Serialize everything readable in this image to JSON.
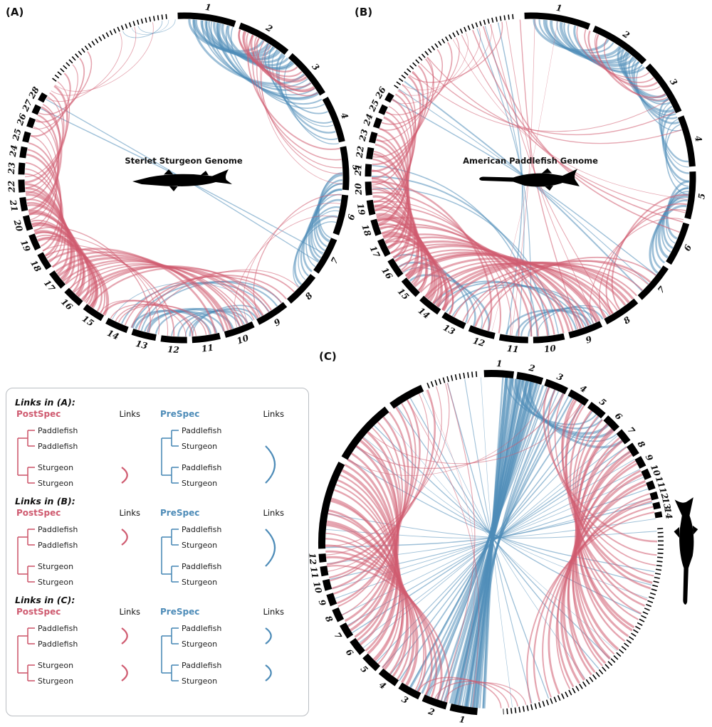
{
  "colors": {
    "post": "#cf5b70",
    "pre": "#4e8cb8",
    "ink": "#000000"
  },
  "panel_labels": {
    "a": "(A)",
    "b": "(B)",
    "c": "(C)"
  },
  "chart_data": [
    {
      "type": "circos",
      "panel": "(A)",
      "title": "Sterlet Sturgeon Genome",
      "chromosomes": [
        "1",
        "2",
        "3",
        "4",
        "5",
        "6",
        "7",
        "8",
        "9",
        "10",
        "11",
        "12",
        "13",
        "14",
        "15",
        "16",
        "17",
        "18",
        "19",
        "20",
        "21",
        "22",
        "23",
        "24",
        "25",
        "26",
        "27",
        "28"
      ],
      "dotted_unplaced_region": true,
      "link_types": {
        "red": "PostSpec",
        "blue": "PreSpec"
      },
      "links_pre": [
        [
          2,
          16,
          30,
          44,
          10,
          3
        ],
        [
          4,
          18,
          50,
          62,
          8,
          2.5
        ],
        [
          32,
          42,
          66,
          78,
          6,
          2
        ],
        [
          88,
          96,
          112,
          124,
          8,
          2.5
        ],
        [
          98,
          106,
          126,
          134,
          5,
          2
        ],
        [
          150,
          158,
          176,
          184,
          5,
          2
        ],
        [
          160,
          170,
          190,
          200,
          5,
          2.5
        ],
        [
          142,
          150,
          196,
          206,
          4,
          1.5
        ],
        [
          338,
          344,
          352,
          357,
          3,
          1
        ],
        [
          296,
          300,
          118,
          122,
          2,
          1.5
        ]
      ],
      "links_post": [
        [
          20,
          28,
          46,
          58,
          8,
          2.5
        ],
        [
          26,
          34,
          80,
          92,
          5,
          1.5
        ],
        [
          210,
          220,
          246,
          256,
          8,
          3
        ],
        [
          222,
          232,
          258,
          268,
          8,
          3
        ],
        [
          236,
          244,
          272,
          282,
          6,
          2.5
        ],
        [
          250,
          258,
          286,
          296,
          5,
          2
        ],
        [
          262,
          270,
          298,
          308,
          5,
          2
        ],
        [
          286,
          294,
          312,
          322,
          4,
          1.5
        ],
        [
          146,
          156,
          216,
          226,
          6,
          2.5
        ],
        [
          158,
          168,
          228,
          238,
          6,
          2.5
        ],
        [
          170,
          180,
          204,
          212,
          5,
          2
        ],
        [
          184,
          192,
          240,
          250,
          4,
          2
        ],
        [
          134,
          142,
          194,
          202,
          4,
          1.5
        ],
        [
          300,
          306,
          336,
          348,
          3,
          1
        ],
        [
          96,
          104,
          152,
          160,
          3,
          1.2
        ]
      ]
    },
    {
      "type": "circos",
      "panel": "(B)",
      "title": "American Paddlefish Genome",
      "chromosomes": [
        "1",
        "2",
        "3",
        "4",
        "5",
        "6",
        "7",
        "8",
        "9",
        "10",
        "11",
        "12",
        "13",
        "14",
        "15",
        "16",
        "17",
        "18",
        "19",
        "20",
        "21",
        "22",
        "23",
        "24",
        "25",
        "26"
      ],
      "dotted_unplaced_region": true,
      "link_types": {
        "red": "PostSpec",
        "blue": "PreSpec"
      },
      "links_pre": [
        [
          2,
          16,
          30,
          46,
          10,
          3
        ],
        [
          34,
          44,
          58,
          72,
          8,
          2.5
        ],
        [
          60,
          70,
          84,
          96,
          6,
          2
        ],
        [
          92,
          100,
          112,
          126,
          8,
          2.5
        ],
        [
          150,
          160,
          178,
          188,
          5,
          2
        ],
        [
          196,
          204,
          230,
          240,
          4,
          2
        ],
        [
          156,
          164,
          210,
          218,
          4,
          2
        ],
        [
          170,
          178,
          266,
          274,
          3,
          1.5
        ],
        [
          128,
          136,
          300,
          308,
          3,
          1.5
        ],
        [
          180,
          188,
          340,
          348,
          3,
          1
        ]
      ],
      "links_post": [
        [
          18,
          28,
          48,
          60,
          6,
          2
        ],
        [
          210,
          222,
          246,
          258,
          10,
          3.2
        ],
        [
          224,
          234,
          260,
          272,
          8,
          3
        ],
        [
          238,
          248,
          276,
          288,
          7,
          2.5
        ],
        [
          252,
          262,
          292,
          304,
          6,
          2.2
        ],
        [
          268,
          278,
          306,
          318,
          5,
          2
        ],
        [
          284,
          294,
          320,
          332,
          4,
          1.5
        ],
        [
          300,
          310,
          336,
          350,
          4,
          1.2
        ],
        [
          140,
          152,
          214,
          226,
          7,
          2.8
        ],
        [
          154,
          166,
          230,
          242,
          7,
          2.8
        ],
        [
          168,
          180,
          244,
          254,
          5,
          2
        ],
        [
          184,
          196,
          258,
          268,
          4,
          2
        ],
        [
          128,
          138,
          198,
          208,
          5,
          2
        ],
        [
          330,
          342,
          98,
          110,
          4,
          1.2
        ],
        [
          346,
          356,
          150,
          162,
          3,
          1
        ],
        [
          312,
          320,
          60,
          72,
          3,
          1
        ],
        [
          96,
          106,
          146,
          156,
          4,
          1.5
        ],
        [
          2,
          10,
          186,
          194,
          2,
          0.8
        ]
      ]
    },
    {
      "type": "circos",
      "panel": "(C)",
      "title": "",
      "chromosomes_top_paddlefish": [
        "1",
        "2",
        "3",
        "4",
        "5",
        "6",
        "7",
        "8",
        "9",
        "10",
        "11",
        "12",
        "13",
        "14"
      ],
      "chromosomes_bottom_sturgeon": [
        "1",
        "2",
        "3",
        "4",
        "5",
        "6",
        "7",
        "8",
        "9",
        "10",
        "11",
        "12"
      ],
      "dotted_unplaced_region": true,
      "link_types": {
        "red": "PostSpec",
        "blue": "PreSpec"
      },
      "links_pre": [
        [
          4,
          16,
          182,
          196,
          14,
          4
        ],
        [
          8,
          20,
          198,
          210,
          8,
          2.5
        ],
        [
          20,
          30,
          184,
          192,
          6,
          2
        ],
        [
          6,
          14,
          40,
          52,
          6,
          2.5
        ],
        [
          34,
          44,
          214,
          224,
          4,
          1.5
        ],
        [
          50,
          60,
          230,
          244,
          5,
          1.5
        ],
        [
          64,
          74,
          250,
          262,
          4,
          1.2
        ],
        [
          76,
          86,
          268,
          280,
          3,
          1.2
        ],
        [
          100,
          115,
          300,
          315,
          4,
          1
        ],
        [
          130,
          145,
          320,
          335,
          4,
          1
        ],
        [
          160,
          172,
          345,
          356,
          3,
          1
        ]
      ],
      "links_post": [
        [
          196,
          208,
          262,
          274,
          6,
          2.5
        ],
        [
          210,
          225,
          276,
          292,
          9,
          3
        ],
        [
          226,
          240,
          294,
          310,
          8,
          2.8
        ],
        [
          242,
          256,
          312,
          328,
          7,
          2.5
        ],
        [
          258,
          268,
          330,
          344,
          5,
          2
        ],
        [
          20,
          30,
          90,
          102,
          4,
          1.8
        ],
        [
          30,
          42,
          104,
          118,
          6,
          2.5
        ],
        [
          44,
          56,
          120,
          134,
          7,
          2.8
        ],
        [
          58,
          70,
          136,
          150,
          7,
          2.5
        ],
        [
          72,
          80,
          152,
          166,
          5,
          2
        ],
        [
          300,
          312,
          20,
          32,
          3,
          1.2
        ],
        [
          330,
          344,
          186,
          198,
          3,
          0.8
        ],
        [
          168,
          176,
          196,
          206,
          4,
          2
        ]
      ]
    }
  ],
  "legend": {
    "post_label": "PostSpec",
    "pre_label": "PreSpec",
    "links_label": "Links",
    "post_leaves": [
      "Paddlefish",
      "Paddlefish",
      "Sturgeon",
      "Sturgeon"
    ],
    "pre_leaves": [
      "Paddlefish",
      "Sturgeon",
      "Paddlefish",
      "Sturgeon"
    ],
    "sections": [
      {
        "title": "Links in (A):",
        "post_arcs": [
          [
            3,
            4
          ]
        ],
        "pre_arcs": [
          [
            2,
            4
          ]
        ]
      },
      {
        "title": "Links in (B):",
        "post_arcs": [
          [
            1,
            2
          ]
        ],
        "pre_arcs": [
          [
            1,
            3
          ]
        ]
      },
      {
        "title": "Links in (C):",
        "post_arcs": [
          [
            1,
            2
          ],
          [
            3,
            4
          ]
        ],
        "pre_arcs": [
          [
            1,
            2
          ],
          [
            3,
            4
          ]
        ]
      }
    ]
  }
}
